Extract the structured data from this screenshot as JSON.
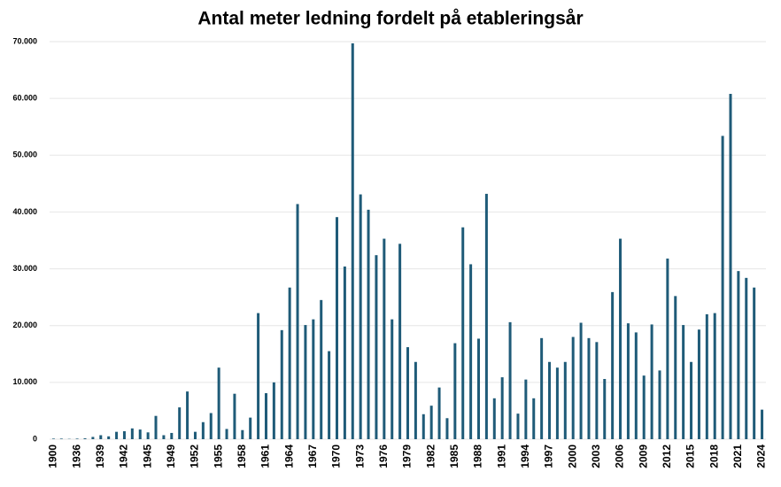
{
  "chart_data": {
    "type": "bar",
    "title": "Antal meter ledning fordelt på etableringsår",
    "categories": [
      "1900",
      null,
      null,
      "1936",
      null,
      null,
      "1939",
      null,
      null,
      "1942",
      null,
      null,
      "1945",
      null,
      null,
      "1949",
      null,
      null,
      "1952",
      null,
      null,
      "1955",
      null,
      null,
      "1958",
      null,
      null,
      "1961",
      null,
      null,
      "1964",
      null,
      null,
      "1967",
      null,
      null,
      "1970",
      null,
      null,
      "1973",
      null,
      null,
      "1976",
      null,
      null,
      "1979",
      null,
      null,
      "1982",
      null,
      null,
      "1985",
      null,
      null,
      "1988",
      null,
      null,
      "1991",
      null,
      null,
      "1994",
      null,
      null,
      "1997",
      null,
      null,
      "2000",
      null,
      null,
      "2003",
      null,
      null,
      "2006",
      null,
      null,
      "2009",
      null,
      null,
      "2012",
      null,
      null,
      "2015",
      null,
      null,
      "2018",
      null,
      null,
      "2021",
      null,
      null,
      "2024"
    ],
    "values": [
      100,
      100,
      50,
      100,
      150,
      400,
      700,
      500,
      1300,
      1400,
      1900,
      1700,
      1200,
      4100,
      700,
      1100,
      5600,
      8400,
      1300,
      3000,
      4600,
      12600,
      1800,
      8000,
      1600,
      3800,
      22200,
      8100,
      10000,
      19200,
      26700,
      41400,
      20100,
      21100,
      24500,
      15500,
      39100,
      30400,
      69700,
      43100,
      40400,
      32400,
      35300,
      21100,
      34400,
      16200,
      13600,
      4400,
      5900,
      9100,
      3700,
      16900,
      37300,
      30800,
      17700,
      43200,
      7200,
      10900,
      20600,
      4500,
      10500,
      7200,
      17800,
      13600,
      12600,
      13600,
      18000,
      20500,
      17800,
      17100,
      10600,
      25900,
      35300,
      20400,
      18800,
      11200,
      20200,
      12100,
      31800,
      25200,
      20100,
      13600,
      19300,
      22000,
      22200,
      53400,
      60800,
      29600,
      28400,
      26700,
      5200
    ],
    "color": "#1f5b78",
    "ylim": [
      0,
      70000
    ],
    "yticks": [
      0,
      {
        "value": 10000,
        "label": "10.000"
      },
      {
        "value": 20000,
        "label": "20.000"
      },
      {
        "value": 30000,
        "label": "30.000"
      },
      {
        "value": 40000,
        "label": "40.000"
      },
      {
        "value": 50000,
        "label": "50.000"
      },
      {
        "value": 60000,
        "label": "60.000"
      },
      {
        "value": 70000,
        "label": "70.000"
      }
    ],
    "grid": true
  }
}
